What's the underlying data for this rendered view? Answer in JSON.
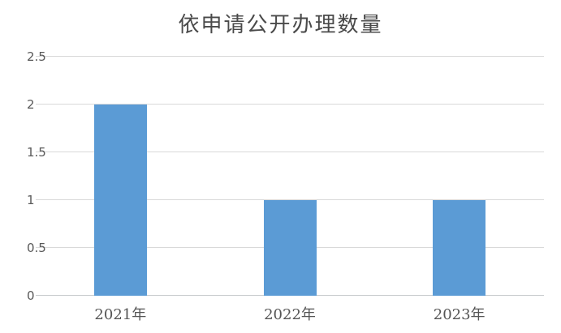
{
  "chart_data": {
    "type": "bar",
    "title": "依申请公开办理数量",
    "categories": [
      "2021年",
      "2022年",
      "2023年"
    ],
    "values": [
      2,
      1,
      1
    ],
    "xlabel": "",
    "ylabel": "",
    "ylim": [
      0,
      2.5
    ],
    "yticks": [
      "0",
      "0.5",
      "1",
      "1.5",
      "2",
      "2.5"
    ],
    "grid": "on",
    "legend": "none",
    "colors": {
      "bar": "#5b9bd5",
      "gridline": "#d9d9d9",
      "axis_line": "#c6c9cc",
      "title_text": "#4a4a4a",
      "tick_text": "#595959",
      "background": "#ffffff"
    }
  }
}
